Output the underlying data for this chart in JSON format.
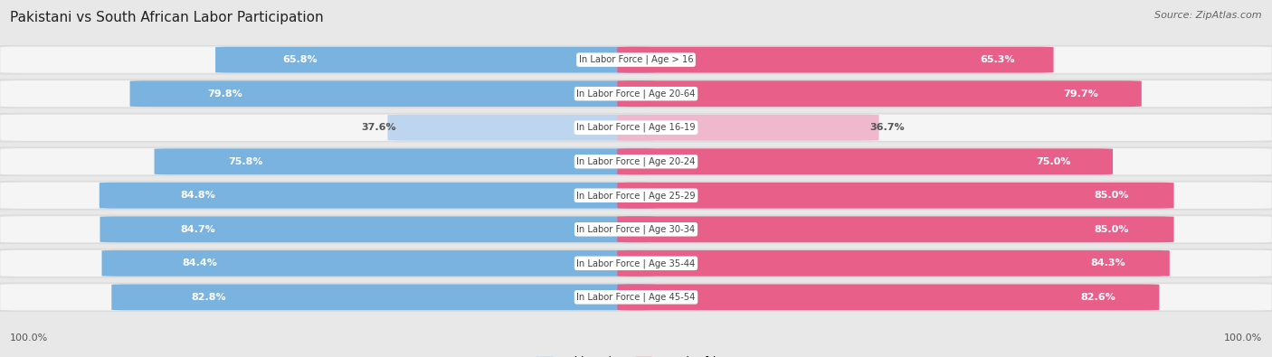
{
  "title": "Pakistani vs South African Labor Participation",
  "source": "Source: ZipAtlas.com",
  "categories": [
    "In Labor Force | Age > 16",
    "In Labor Force | Age 20-64",
    "In Labor Force | Age 16-19",
    "In Labor Force | Age 20-24",
    "In Labor Force | Age 25-29",
    "In Labor Force | Age 30-34",
    "In Labor Force | Age 35-44",
    "In Labor Force | Age 45-54"
  ],
  "pakistani": [
    65.8,
    79.8,
    37.6,
    75.8,
    84.8,
    84.7,
    84.4,
    82.8
  ],
  "south_african": [
    65.3,
    79.7,
    36.7,
    75.0,
    85.0,
    85.0,
    84.3,
    82.6
  ],
  "pak_color_dark": "#7ab3e0",
  "pak_color_light": "#bdd5ee",
  "sa_color_dark": "#e8608a",
  "sa_color_light": "#f0b8cc",
  "label_white": "#ffffff",
  "label_dark": "#555555",
  "light_threshold": 50,
  "max_val": 100.0,
  "fig_bg": "#e8e8e8",
  "row_bg": "#f5f5f5",
  "row_outer": "#dcdcdc",
  "center_label_bg": "#ffffff",
  "center_label_color": "#444444",
  "legend_pak_color": "#7ab3e0",
  "legend_sa_color": "#e8608a",
  "title_color": "#222222",
  "source_color": "#666666",
  "bottom_label_color": "#555555"
}
